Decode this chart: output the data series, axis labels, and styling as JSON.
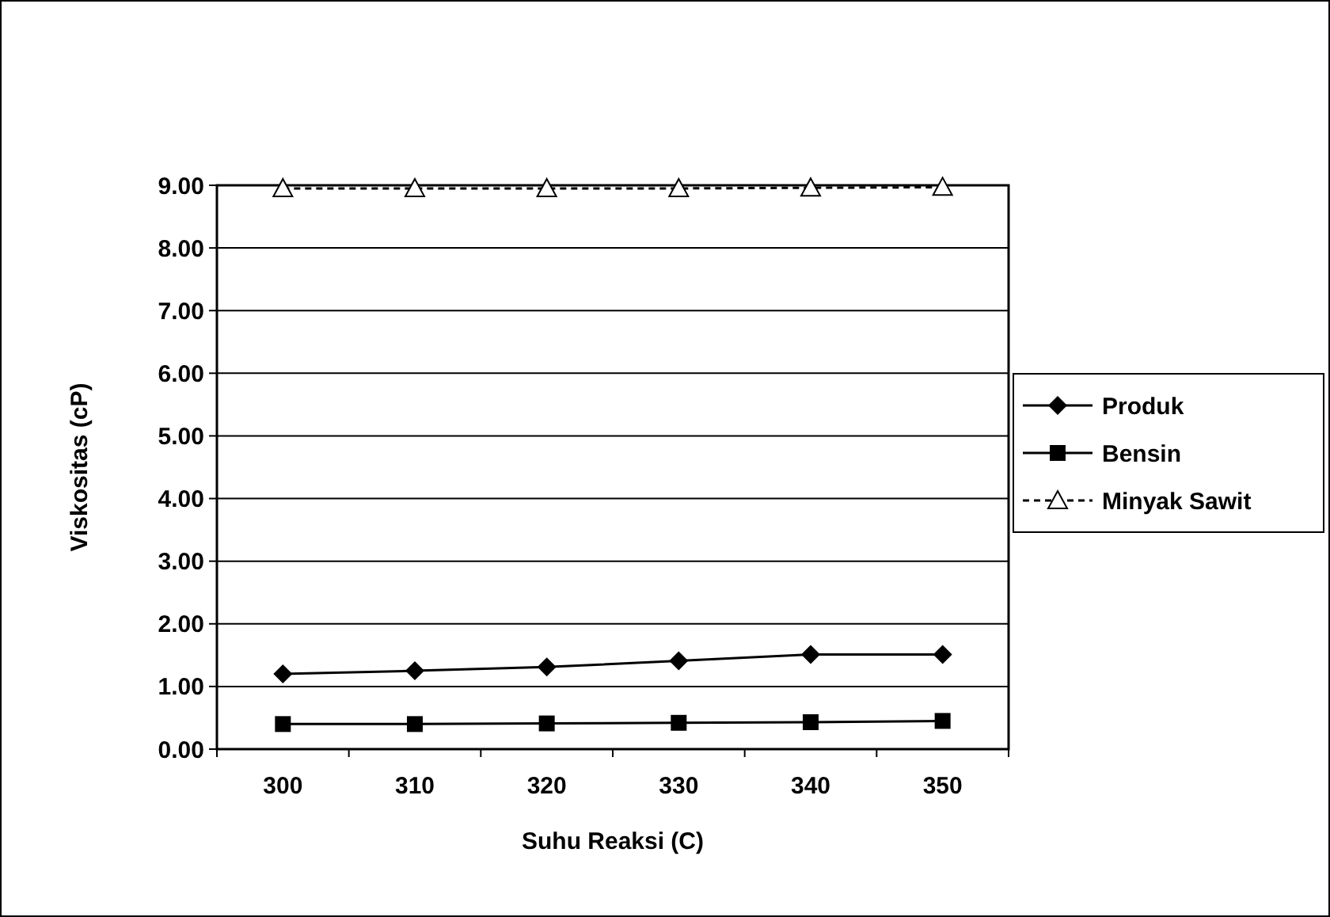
{
  "chart_data": {
    "type": "line",
    "xlabel": "Suhu Reaksi (C)",
    "ylabel": "Viskositas (cP)",
    "categories": [
      "300",
      "310",
      "320",
      "330",
      "340",
      "350"
    ],
    "series": [
      {
        "name": "Produk",
        "color": "#000000",
        "marker": "diamond",
        "line_style": "solid",
        "values": [
          1.2,
          1.25,
          1.31,
          1.41,
          1.51,
          1.51
        ]
      },
      {
        "name": "Bensin",
        "color": "#000000",
        "marker": "square",
        "line_style": "solid",
        "values": [
          0.4,
          0.4,
          0.41,
          0.42,
          0.43,
          0.45
        ]
      },
      {
        "name": "Minyak Sawit",
        "color": "#000000",
        "marker": "triangle",
        "line_style": "dashed",
        "values": [
          8.95,
          8.95,
          8.95,
          8.95,
          8.96,
          8.97
        ]
      }
    ],
    "ylim": [
      0,
      9
    ],
    "yticks": [
      {
        "value": 0,
        "label": "0.00"
      },
      {
        "value": 1,
        "label": "1.00"
      },
      {
        "value": 2,
        "label": "2.00"
      },
      {
        "value": 3,
        "label": "3.00"
      },
      {
        "value": 4,
        "label": "4.00"
      },
      {
        "value": 5,
        "label": "5.00"
      },
      {
        "value": 6,
        "label": "6.00"
      },
      {
        "value": 7,
        "label": "7.00"
      },
      {
        "value": 8,
        "label": "8.00"
      },
      {
        "value": 9,
        "label": "9.00"
      }
    ],
    "grid": "y",
    "legend": "right"
  }
}
